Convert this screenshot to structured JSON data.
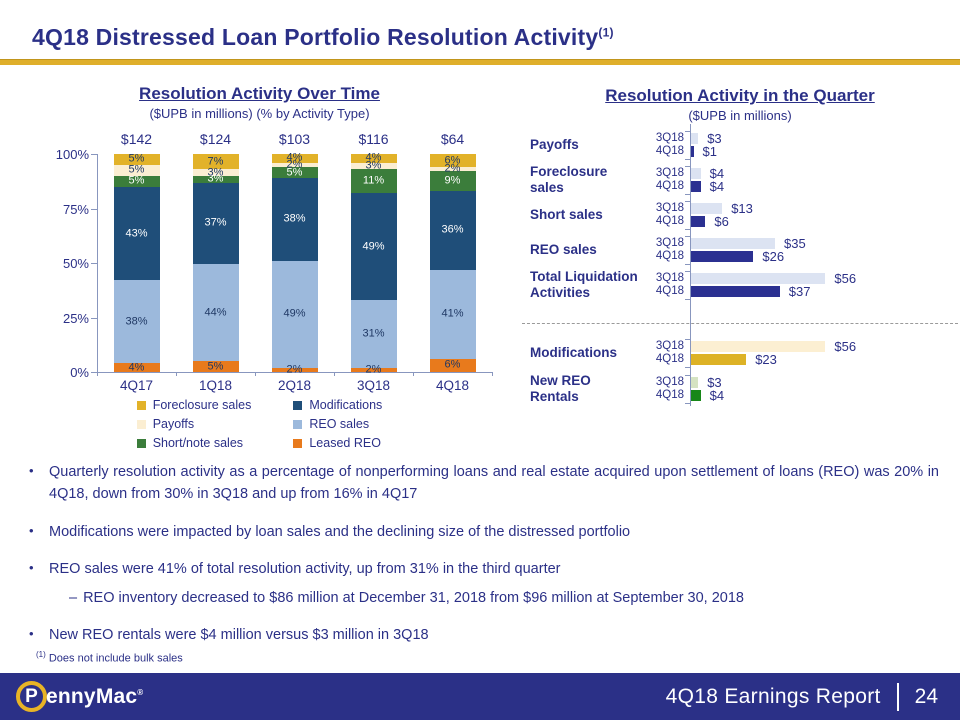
{
  "slide": {
    "title": "4Q18 Distressed Loan Portfolio Resolution Activity",
    "title_superscript": "(1)"
  },
  "ui": {
    "bullet_glyph": "•",
    "sub_bullet_glyph": "–"
  },
  "colors": {
    "navy_text": "#2B3087",
    "gold_rule": "#DFAF2B",
    "axis": "#8896BE",
    "footer_bg": "#2B3087"
  },
  "chart_data": [
    {
      "type": "bar",
      "stacked": true,
      "orientation": "vertical",
      "title": "Resolution Activity Over Time",
      "subtitle": "($UPB in millions) (% by Activity Type)",
      "categories": [
        "4Q17",
        "1Q18",
        "2Q18",
        "3Q18",
        "4Q18"
      ],
      "totals": [
        "$142",
        "$124",
        "$103",
        "$116",
        "$64"
      ],
      "ylim": [
        0,
        100
      ],
      "yticks": [
        "100%",
        "75%",
        "50%",
        "25%",
        "0%"
      ],
      "grid": false,
      "series": [
        {
          "name": "Leased REO",
          "color": "#E87A1C",
          "label_color": "#1F3864",
          "values": [
            4,
            5,
            2,
            2,
            6
          ]
        },
        {
          "name": "REO sales",
          "color": "#9CB9DC",
          "label_color": "#1F3864",
          "values": [
            38,
            44,
            49,
            31,
            41
          ]
        },
        {
          "name": "Modifications",
          "color": "#1F4E79",
          "label_color": "#FFFFFF",
          "values": [
            43,
            37,
            38,
            49,
            36
          ]
        },
        {
          "name": "Short/note sales",
          "color": "#3B7D3B",
          "label_color": "#FFFFFF",
          "values": [
            5,
            3,
            5,
            11,
            9
          ]
        },
        {
          "name": "Payoffs",
          "color": "#FBEED2",
          "label_color": "#1F3864",
          "values": [
            5,
            3,
            2,
            3,
            2
          ]
        },
        {
          "name": "Foreclosure sales",
          "color": "#E2B229",
          "label_color": "#1F3864",
          "values": [
            5,
            7,
            4,
            4,
            6
          ]
        }
      ],
      "legend_order": [
        "Foreclosure sales",
        "Payoffs",
        "Short/note sales",
        "Modifications",
        "REO sales",
        "Leased REO"
      ],
      "legend_position": "bottom"
    },
    {
      "type": "bar",
      "orientation": "horizontal",
      "title": "Resolution Activity in the Quarter",
      "subtitle": "($UPB in millions)",
      "series_labels": [
        "3Q18",
        "4Q18"
      ],
      "xmax": 56,
      "groups": [
        {
          "label": "Payoffs",
          "values": [
            3,
            1
          ],
          "display": [
            "$3",
            "$1"
          ],
          "colors": [
            "#DCE3F2",
            "#2B3091"
          ]
        },
        {
          "label": "Foreclosure sales",
          "values": [
            4,
            4
          ],
          "display": [
            "$4",
            "$4"
          ],
          "colors": [
            "#DCE3F2",
            "#2B3091"
          ]
        },
        {
          "label": "Short sales",
          "values": [
            13,
            6
          ],
          "display": [
            "$13",
            "$6"
          ],
          "colors": [
            "#DCE3F2",
            "#2B3091"
          ]
        },
        {
          "label": "REO sales",
          "values": [
            35,
            26
          ],
          "display": [
            "$35",
            "$26"
          ],
          "colors": [
            "#DCE3F2",
            "#2B3091"
          ]
        },
        {
          "label": "Total Liquidation Activities",
          "values": [
            56,
            37
          ],
          "display": [
            "$56",
            "$37"
          ],
          "colors": [
            "#DCE3F2",
            "#2B3091"
          ]
        },
        {
          "label": "Modifications",
          "values": [
            56,
            23
          ],
          "display": [
            "$56",
            "$23"
          ],
          "colors": [
            "#FCEFD2",
            "#DDB226"
          ]
        },
        {
          "label": "New REO Rentals",
          "values": [
            3,
            4
          ],
          "display": [
            "$3",
            "$4"
          ],
          "colors": [
            "#D5E3C2",
            "#178718"
          ]
        }
      ],
      "separator_after_group_index": 4
    }
  ],
  "bullets": [
    {
      "text": "Quarterly resolution activity as a percentage of nonperforming loans and real estate acquired upon settlement of loans (REO) was 20% in 4Q18, down from 30% in 3Q18 and up from 16% in 4Q17",
      "sub": []
    },
    {
      "text": "Modifications were impacted by loan sales and the declining size of the distressed portfolio",
      "sub": []
    },
    {
      "text": "REO sales were 41% of total resolution activity, up from 31% in the third quarter",
      "sub": [
        "REO inventory decreased to $86 million at December 31, 2018 from $96 million at September 30, 2018"
      ]
    },
    {
      "text": "New REO rentals were $4 million versus $3 million in 3Q18",
      "sub": []
    }
  ],
  "footnote": {
    "marker": "(1)",
    "text": "Does not include bulk sales"
  },
  "footer": {
    "brand_initial": "P",
    "brand_rest": "ennyMac",
    "reg": "®",
    "report": "4Q18 Earnings Report",
    "page": "24"
  }
}
